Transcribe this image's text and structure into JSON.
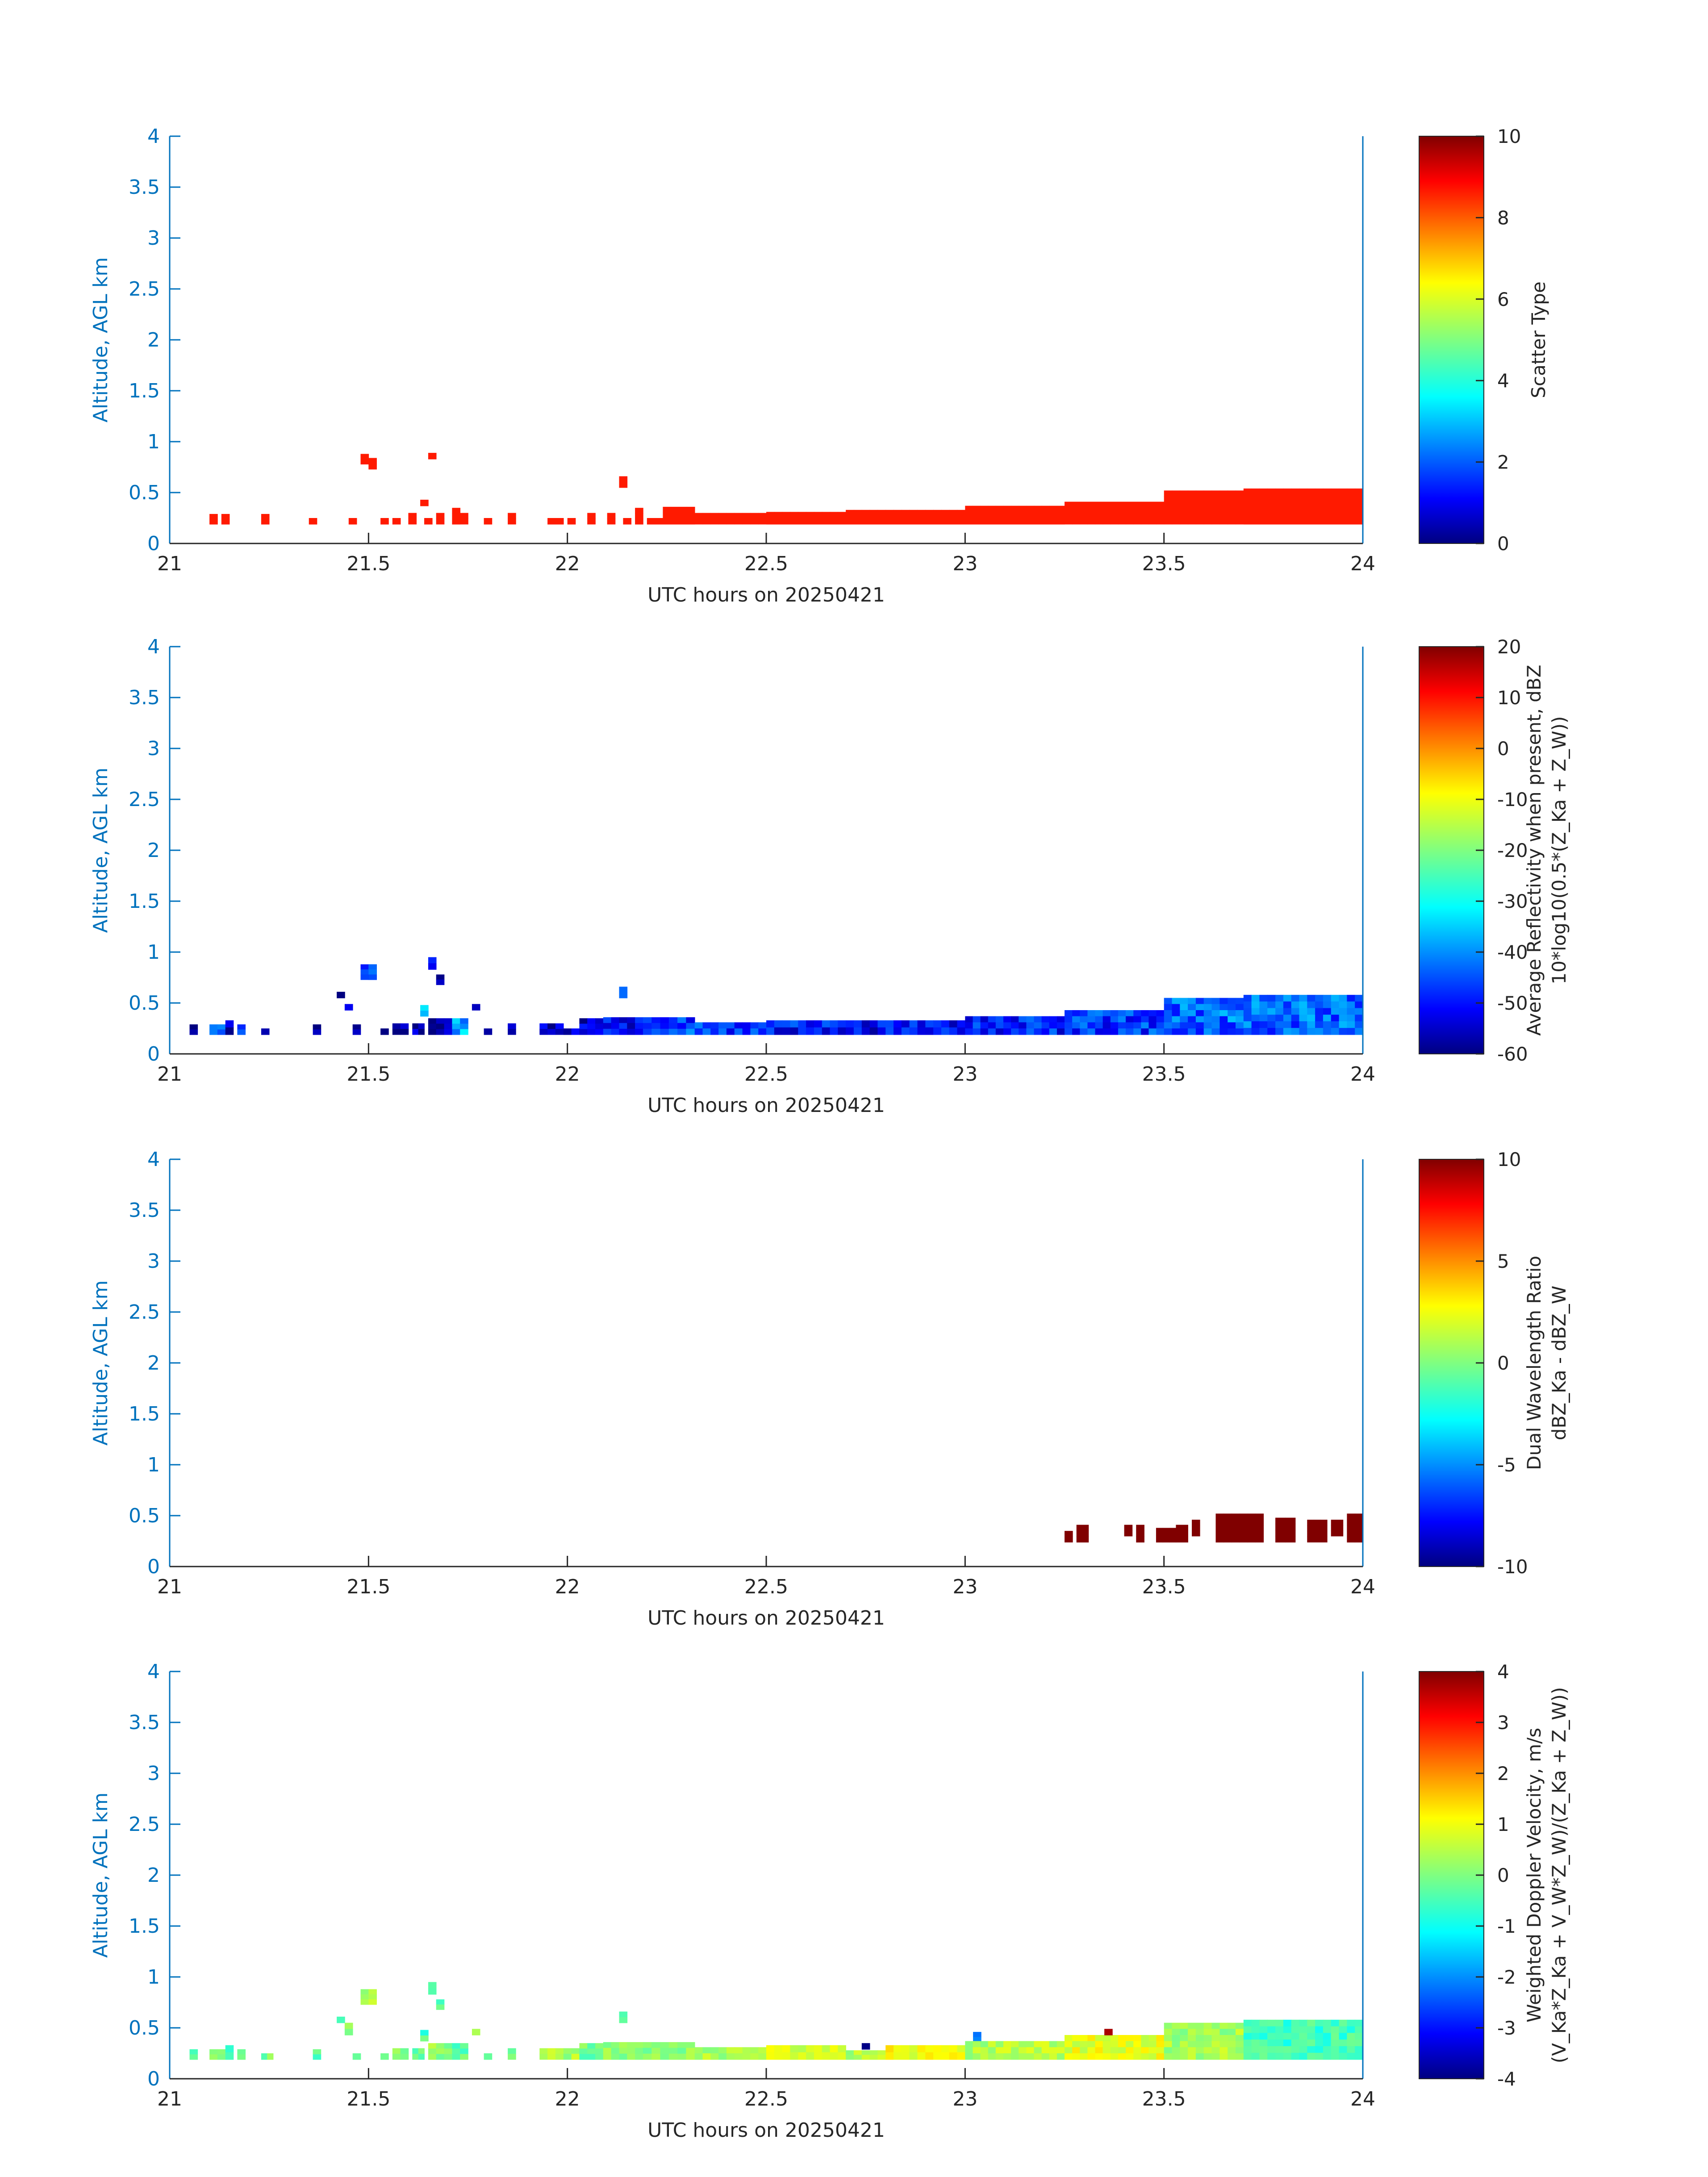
{
  "figure": {
    "colors": {
      "left_axis": "#0072BD",
      "frame": "#262626",
      "text": "#262626"
    }
  },
  "chart_data": [
    {
      "type": "heatmap",
      "id": "scatter_type",
      "xlabel": "UTC hours on 20250421",
      "ylabel": "Altitude, AGL km",
      "xlim": [
        21,
        24
      ],
      "ylim": [
        0,
        4
      ],
      "xticks": [
        "21",
        "21.5",
        "22",
        "22.5",
        "23",
        "23.5",
        "24"
      ],
      "yticks": [
        "0",
        "0.5",
        "1",
        "1.5",
        "2",
        "2.5",
        "3",
        "3.5",
        "4"
      ],
      "colorbar": {
        "label_lines": [
          "Scatter Type"
        ],
        "clim": [
          0,
          10
        ],
        "ticks": [
          "0",
          "2",
          "4",
          "6",
          "8",
          "10"
        ],
        "colormap": "jet"
      },
      "bin_hours": 0.02,
      "bin_km": 0.06,
      "segments": [
        {
          "x0": 21.1,
          "x1": 21.12,
          "y0": 0.19,
          "y1": 0.29,
          "v": 8.5
        },
        {
          "x0": 21.13,
          "x1": 21.15,
          "y0": 0.19,
          "y1": 0.29,
          "v": 8.5
        },
        {
          "x0": 21.23,
          "x1": 21.25,
          "y0": 0.19,
          "y1": 0.29,
          "v": 8.5
        },
        {
          "x0": 21.35,
          "x1": 21.37,
          "y0": 0.19,
          "y1": 0.25,
          "v": 8.5
        },
        {
          "x0": 21.45,
          "x1": 21.47,
          "y0": 0.19,
          "y1": 0.25,
          "v": 8.5
        },
        {
          "x0": 21.48,
          "x1": 21.5,
          "y0": 0.78,
          "y1": 0.88,
          "v": 8.5
        },
        {
          "x0": 21.5,
          "x1": 21.52,
          "y0": 0.73,
          "y1": 0.84,
          "v": 8.5
        },
        {
          "x0": 21.53,
          "x1": 21.55,
          "y0": 0.19,
          "y1": 0.25,
          "v": 8.5
        },
        {
          "x0": 21.56,
          "x1": 21.58,
          "y0": 0.19,
          "y1": 0.25,
          "v": 8.5
        },
        {
          "x0": 21.6,
          "x1": 21.62,
          "y0": 0.19,
          "y1": 0.3,
          "v": 8.5
        },
        {
          "x0": 21.63,
          "x1": 21.65,
          "y0": 0.37,
          "y1": 0.43,
          "v": 8.5
        },
        {
          "x0": 21.64,
          "x1": 21.66,
          "y0": 0.19,
          "y1": 0.25,
          "v": 8.5
        },
        {
          "x0": 21.65,
          "x1": 21.67,
          "y0": 0.83,
          "y1": 0.89,
          "v": 8.5
        },
        {
          "x0": 21.67,
          "x1": 21.69,
          "y0": 0.19,
          "y1": 0.3,
          "v": 8.5
        },
        {
          "x0": 21.71,
          "x1": 21.73,
          "y0": 0.19,
          "y1": 0.35,
          "v": 8.5
        },
        {
          "x0": 21.73,
          "x1": 21.75,
          "y0": 0.19,
          "y1": 0.3,
          "v": 8.5
        },
        {
          "x0": 21.79,
          "x1": 21.81,
          "y0": 0.19,
          "y1": 0.25,
          "v": 8.5
        },
        {
          "x0": 21.85,
          "x1": 21.87,
          "y0": 0.19,
          "y1": 0.3,
          "v": 8.5
        },
        {
          "x0": 21.95,
          "x1": 21.99,
          "y0": 0.19,
          "y1": 0.25,
          "v": 8.5
        },
        {
          "x0": 22.0,
          "x1": 22.02,
          "y0": 0.19,
          "y1": 0.25,
          "v": 8.5
        },
        {
          "x0": 22.05,
          "x1": 22.07,
          "y0": 0.19,
          "y1": 0.3,
          "v": 8.5
        },
        {
          "x0": 22.1,
          "x1": 22.12,
          "y0": 0.19,
          "y1": 0.3,
          "v": 8.5
        },
        {
          "x0": 22.13,
          "x1": 22.15,
          "y0": 0.55,
          "y1": 0.66,
          "v": 8.5
        },
        {
          "x0": 22.14,
          "x1": 22.16,
          "y0": 0.19,
          "y1": 0.25,
          "v": 8.5
        },
        {
          "x0": 22.17,
          "x1": 22.19,
          "y0": 0.19,
          "y1": 0.35,
          "v": 8.5
        },
        {
          "x0": 22.2,
          "x1": 22.24,
          "y0": 0.19,
          "y1": 0.25,
          "v": 8.5
        },
        {
          "x0": 22.24,
          "x1": 22.32,
          "y0": 0.19,
          "y1": 0.36,
          "v": 8.5
        },
        {
          "x0": 22.32,
          "x1": 22.5,
          "y0": 0.19,
          "y1": 0.3,
          "v": 8.5
        },
        {
          "x0": 22.5,
          "x1": 22.7,
          "y0": 0.19,
          "y1": 0.31,
          "v": 8.5
        },
        {
          "x0": 22.7,
          "x1": 22.8,
          "y0": 0.19,
          "y1": 0.33,
          "v": 8.5
        },
        {
          "x0": 22.8,
          "x1": 23.0,
          "y0": 0.19,
          "y1": 0.33,
          "v": 8.5
        },
        {
          "x0": 23.0,
          "x1": 23.25,
          "y0": 0.19,
          "y1": 0.37,
          "v": 8.5
        },
        {
          "x0": 23.25,
          "x1": 23.5,
          "y0": 0.19,
          "y1": 0.41,
          "v": 8.5
        },
        {
          "x0": 23.5,
          "x1": 23.7,
          "y0": 0.19,
          "y1": 0.52,
          "v": 8.5
        },
        {
          "x0": 23.7,
          "x1": 24.0,
          "y0": 0.19,
          "y1": 0.54,
          "v": 8.5
        }
      ]
    },
    {
      "type": "heatmap",
      "id": "reflectivity",
      "xlabel": "UTC hours on 20250421",
      "ylabel": "Altitude, AGL km",
      "xlim": [
        21,
        24
      ],
      "ylim": [
        0,
        4
      ],
      "xticks": [
        "21",
        "21.5",
        "22",
        "22.5",
        "23",
        "23.5",
        "24"
      ],
      "yticks": [
        "0",
        "0.5",
        "1",
        "1.5",
        "2",
        "2.5",
        "3",
        "3.5",
        "4"
      ],
      "colorbar": {
        "label_lines": [
          "Average Reflectivity when present, dBZ",
          "10*log10(0.5*(Z_Ka + Z_W))"
        ],
        "clim": [
          -60,
          20
        ],
        "ticks": [
          "-60",
          "-50",
          "-40",
          "-30",
          "-20",
          "-10",
          "0",
          "10",
          "20"
        ],
        "colormap": "jet"
      },
      "bin_hours": 0.02,
      "bin_km": 0.06,
      "segments": [
        {
          "x0": 21.05,
          "x1": 21.07,
          "y0": 0.19,
          "y1": 0.29,
          "v": -57
        },
        {
          "x0": 21.1,
          "x1": 21.14,
          "y0": 0.19,
          "y1": 0.29,
          "v": -38
        },
        {
          "x0": 21.14,
          "x1": 21.16,
          "y0": 0.19,
          "y1": 0.33,
          "v": -58
        },
        {
          "x0": 21.17,
          "x1": 21.19,
          "y0": 0.19,
          "y1": 0.29,
          "v": -40
        },
        {
          "x0": 21.23,
          "x1": 21.25,
          "y0": 0.19,
          "y1": 0.25,
          "v": -58
        },
        {
          "x0": 21.36,
          "x1": 21.38,
          "y0": 0.19,
          "y1": 0.29,
          "v": -58
        },
        {
          "x0": 21.42,
          "x1": 21.44,
          "y0": 0.55,
          "y1": 0.61,
          "v": -57
        },
        {
          "x0": 21.44,
          "x1": 21.46,
          "y0": 0.43,
          "y1": 0.49,
          "v": -57
        },
        {
          "x0": 21.46,
          "x1": 21.48,
          "y0": 0.19,
          "y1": 0.29,
          "v": -58
        },
        {
          "x0": 21.48,
          "x1": 21.52,
          "y0": 0.73,
          "y1": 0.88,
          "v": -47
        },
        {
          "x0": 21.5,
          "x1": 21.52,
          "y0": 0.73,
          "y1": 0.88,
          "v": -44
        },
        {
          "x0": 21.53,
          "x1": 21.55,
          "y0": 0.19,
          "y1": 0.25,
          "v": -58
        },
        {
          "x0": 21.56,
          "x1": 21.6,
          "y0": 0.19,
          "y1": 0.3,
          "v": -58
        },
        {
          "x0": 21.61,
          "x1": 21.64,
          "y0": 0.19,
          "y1": 0.3,
          "v": -57
        },
        {
          "x0": 21.63,
          "x1": 21.65,
          "y0": 0.37,
          "y1": 0.48,
          "v": -33
        },
        {
          "x0": 21.65,
          "x1": 21.67,
          "y0": 0.83,
          "y1": 0.95,
          "v": -50
        },
        {
          "x0": 21.67,
          "x1": 21.69,
          "y0": 0.68,
          "y1": 0.78,
          "v": -55
        },
        {
          "x0": 21.65,
          "x1": 21.71,
          "y0": 0.19,
          "y1": 0.35,
          "v": -58
        },
        {
          "x0": 21.71,
          "x1": 21.75,
          "y0": 0.19,
          "y1": 0.35,
          "v": -36
        },
        {
          "x0": 21.76,
          "x1": 21.78,
          "y0": 0.43,
          "y1": 0.49,
          "v": -57
        },
        {
          "x0": 21.79,
          "x1": 21.81,
          "y0": 0.19,
          "y1": 0.25,
          "v": -56
        },
        {
          "x0": 21.85,
          "x1": 21.87,
          "y0": 0.19,
          "y1": 0.3,
          "v": -55
        },
        {
          "x0": 21.93,
          "x1": 21.99,
          "y0": 0.19,
          "y1": 0.3,
          "v": -54
        },
        {
          "x0": 21.99,
          "x1": 22.03,
          "y0": 0.19,
          "y1": 0.25,
          "v": -52
        },
        {
          "x0": 22.03,
          "x1": 22.09,
          "y0": 0.19,
          "y1": 0.35,
          "v": -55
        },
        {
          "x0": 22.09,
          "x1": 22.19,
          "y0": 0.19,
          "y1": 0.36,
          "v": -50
        },
        {
          "x0": 22.13,
          "x1": 22.15,
          "y0": 0.55,
          "y1": 0.66,
          "v": -37
        },
        {
          "x0": 22.19,
          "x1": 22.32,
          "y0": 0.19,
          "y1": 0.36,
          "v": -45
        },
        {
          "x0": 22.32,
          "x1": 22.5,
          "y0": 0.19,
          "y1": 0.31,
          "v": -47
        },
        {
          "x0": 22.5,
          "x1": 22.7,
          "y0": 0.19,
          "y1": 0.33,
          "v": -49
        },
        {
          "x0": 22.7,
          "x1": 22.8,
          "y0": 0.19,
          "y1": 0.33,
          "v": -51
        },
        {
          "x0": 22.8,
          "x1": 23.0,
          "y0": 0.19,
          "y1": 0.33,
          "v": -50
        },
        {
          "x0": 23.0,
          "x1": 23.25,
          "y0": 0.19,
          "y1": 0.37,
          "v": -48
        },
        {
          "x0": 23.25,
          "x1": 23.5,
          "y0": 0.19,
          "y1": 0.43,
          "v": -46
        },
        {
          "x0": 23.5,
          "x1": 23.7,
          "y0": 0.19,
          "y1": 0.55,
          "v": -42
        },
        {
          "x0": 23.7,
          "x1": 24.0,
          "y0": 0.19,
          "y1": 0.58,
          "v": -42
        }
      ]
    },
    {
      "type": "heatmap",
      "id": "dual_wavelength_ratio",
      "xlabel": "UTC hours on 20250421",
      "ylabel": "Altitude, AGL km",
      "xlim": [
        21,
        24
      ],
      "ylim": [
        0,
        4
      ],
      "xticks": [
        "21",
        "21.5",
        "22",
        "22.5",
        "23",
        "23.5",
        "24"
      ],
      "yticks": [
        "0",
        "0.5",
        "1",
        "1.5",
        "2",
        "2.5",
        "3",
        "3.5",
        "4"
      ],
      "colorbar": {
        "label_lines": [
          "Dual Wavelength Ratio",
          "dBZ_Ka - dBZ_W"
        ],
        "clim": [
          -10,
          10
        ],
        "ticks": [
          "-10",
          "-5",
          "0",
          "5",
          "10"
        ],
        "colormap": "jet"
      },
      "bin_hours": 0.02,
      "bin_km": 0.06,
      "segments": [
        {
          "x0": 23.25,
          "x1": 23.27,
          "y0": 0.24,
          "y1": 0.35,
          "v": 10
        },
        {
          "x0": 23.28,
          "x1": 23.31,
          "y0": 0.24,
          "y1": 0.41,
          "v": 10
        },
        {
          "x0": 23.4,
          "x1": 23.42,
          "y0": 0.3,
          "y1": 0.41,
          "v": 10
        },
        {
          "x0": 23.43,
          "x1": 23.45,
          "y0": 0.24,
          "y1": 0.41,
          "v": 10
        },
        {
          "x0": 23.48,
          "x1": 23.53,
          "y0": 0.24,
          "y1": 0.38,
          "v": 10
        },
        {
          "x0": 23.53,
          "x1": 23.56,
          "y0": 0.24,
          "y1": 0.41,
          "v": 10
        },
        {
          "x0": 23.57,
          "x1": 23.59,
          "y0": 0.3,
          "y1": 0.46,
          "v": 10
        },
        {
          "x0": 23.63,
          "x1": 23.75,
          "y0": 0.24,
          "y1": 0.52,
          "v": 10
        },
        {
          "x0": 23.78,
          "x1": 23.83,
          "y0": 0.24,
          "y1": 0.48,
          "v": 10
        },
        {
          "x0": 23.86,
          "x1": 23.91,
          "y0": 0.24,
          "y1": 0.46,
          "v": 10
        },
        {
          "x0": 23.92,
          "x1": 23.95,
          "y0": 0.3,
          "y1": 0.46,
          "v": 10
        },
        {
          "x0": 23.96,
          "x1": 24.0,
          "y0": 0.24,
          "y1": 0.52,
          "v": 10
        }
      ]
    },
    {
      "type": "heatmap",
      "id": "doppler_velocity",
      "xlabel": "UTC hours on 20250421",
      "ylabel": "Altitude, AGL km",
      "xlim": [
        21,
        24
      ],
      "ylim": [
        0,
        4
      ],
      "xticks": [
        "21",
        "21.5",
        "22",
        "22.5",
        "23",
        "23.5",
        "24"
      ],
      "yticks": [
        "0",
        "0.5",
        "1",
        "1.5",
        "2",
        "2.5",
        "3",
        "3.5",
        "4"
      ],
      "colorbar": {
        "label_lines": [
          "Weighted Doppler Velocity, m/s",
          "(V_Ka*Z_Ka + V_W*Z_W)/(Z_Ka + Z_W))"
        ],
        "clim": [
          -4,
          4
        ],
        "ticks": [
          "-4",
          "-3",
          "-2",
          "-1",
          "0",
          "1",
          "2",
          "3",
          "4"
        ],
        "colormap": "jet"
      },
      "bin_hours": 0.02,
      "bin_km": 0.06,
      "segments": [
        {
          "x0": 21.05,
          "x1": 21.07,
          "y0": 0.19,
          "y1": 0.29,
          "v": -0.2
        },
        {
          "x0": 21.1,
          "x1": 21.14,
          "y0": 0.19,
          "y1": 0.29,
          "v": -0.1
        },
        {
          "x0": 21.14,
          "x1": 21.16,
          "y0": 0.19,
          "y1": 0.33,
          "v": -0.6
        },
        {
          "x0": 21.17,
          "x1": 21.19,
          "y0": 0.19,
          "y1": 0.29,
          "v": -0.1
        },
        {
          "x0": 21.23,
          "x1": 21.26,
          "y0": 0.19,
          "y1": 0.25,
          "v": 0.0
        },
        {
          "x0": 21.36,
          "x1": 21.38,
          "y0": 0.19,
          "y1": 0.29,
          "v": -0.2
        },
        {
          "x0": 21.42,
          "x1": 21.44,
          "y0": 0.55,
          "y1": 0.61,
          "v": -0.3
        },
        {
          "x0": 21.44,
          "x1": 21.46,
          "y0": 0.43,
          "y1": 0.55,
          "v": -0.1
        },
        {
          "x0": 21.46,
          "x1": 21.48,
          "y0": 0.19,
          "y1": 0.25,
          "v": -0.2
        },
        {
          "x0": 21.48,
          "x1": 21.52,
          "y0": 0.73,
          "y1": 0.88,
          "v": 0.4
        },
        {
          "x0": 21.53,
          "x1": 21.55,
          "y0": 0.19,
          "y1": 0.25,
          "v": -0.2
        },
        {
          "x0": 21.56,
          "x1": 21.6,
          "y0": 0.19,
          "y1": 0.3,
          "v": -0.1
        },
        {
          "x0": 21.61,
          "x1": 21.64,
          "y0": 0.19,
          "y1": 0.3,
          "v": -0.3
        },
        {
          "x0": 21.63,
          "x1": 21.65,
          "y0": 0.37,
          "y1": 0.48,
          "v": -0.4
        },
        {
          "x0": 21.65,
          "x1": 21.67,
          "y0": 0.83,
          "y1": 0.95,
          "v": -0.5
        },
        {
          "x0": 21.67,
          "x1": 21.69,
          "y0": 0.68,
          "y1": 0.78,
          "v": -0.2
        },
        {
          "x0": 21.65,
          "x1": 21.71,
          "y0": 0.19,
          "y1": 0.35,
          "v": 0.2
        },
        {
          "x0": 21.71,
          "x1": 21.75,
          "y0": 0.19,
          "y1": 0.35,
          "v": -0.3
        },
        {
          "x0": 21.76,
          "x1": 21.78,
          "y0": 0.43,
          "y1": 0.49,
          "v": 0.0
        },
        {
          "x0": 21.79,
          "x1": 21.81,
          "y0": 0.19,
          "y1": 0.25,
          "v": -0.2
        },
        {
          "x0": 21.85,
          "x1": 21.87,
          "y0": 0.19,
          "y1": 0.3,
          "v": -0.2
        },
        {
          "x0": 21.93,
          "x1": 22.03,
          "y0": 0.19,
          "y1": 0.3,
          "v": 0.3
        },
        {
          "x0": 22.03,
          "x1": 22.09,
          "y0": 0.19,
          "y1": 0.35,
          "v": -0.1
        },
        {
          "x0": 22.09,
          "x1": 22.19,
          "y0": 0.19,
          "y1": 0.36,
          "v": 0.2
        },
        {
          "x0": 22.13,
          "x1": 22.15,
          "y0": 0.55,
          "y1": 0.66,
          "v": 0.0
        },
        {
          "x0": 22.19,
          "x1": 22.32,
          "y0": 0.19,
          "y1": 0.36,
          "v": 0.1
        },
        {
          "x0": 22.32,
          "x1": 22.5,
          "y0": 0.19,
          "y1": 0.31,
          "v": 0.3
        },
        {
          "x0": 22.5,
          "x1": 22.7,
          "y0": 0.19,
          "y1": 0.33,
          "v": 0.6
        },
        {
          "x0": 22.74,
          "x1": 22.76,
          "y0": 0.29,
          "y1": 0.35,
          "v": -3.8
        },
        {
          "x0": 22.7,
          "x1": 22.8,
          "y0": 0.19,
          "y1": 0.28,
          "v": 0.4
        },
        {
          "x0": 22.8,
          "x1": 23.0,
          "y0": 0.19,
          "y1": 0.33,
          "v": 0.9
        },
        {
          "x0": 23.02,
          "x1": 23.04,
          "y0": 0.36,
          "y1": 0.46,
          "v": -1.8
        },
        {
          "x0": 23.0,
          "x1": 23.25,
          "y0": 0.19,
          "y1": 0.37,
          "v": 0.4
        },
        {
          "x0": 23.25,
          "x1": 23.5,
          "y0": 0.19,
          "y1": 0.43,
          "v": 0.8
        },
        {
          "x0": 23.35,
          "x1": 23.37,
          "y0": 0.43,
          "y1": 0.49,
          "v": 4.0
        },
        {
          "x0": 23.55,
          "x1": 23.62,
          "y0": 0.28,
          "y1": 0.46,
          "v": 1.9
        },
        {
          "x0": 23.5,
          "x1": 23.7,
          "y0": 0.19,
          "y1": 0.55,
          "v": 0.3
        },
        {
          "x0": 23.7,
          "x1": 24.0,
          "y0": 0.19,
          "y1": 0.58,
          "v": -0.5
        }
      ]
    }
  ]
}
